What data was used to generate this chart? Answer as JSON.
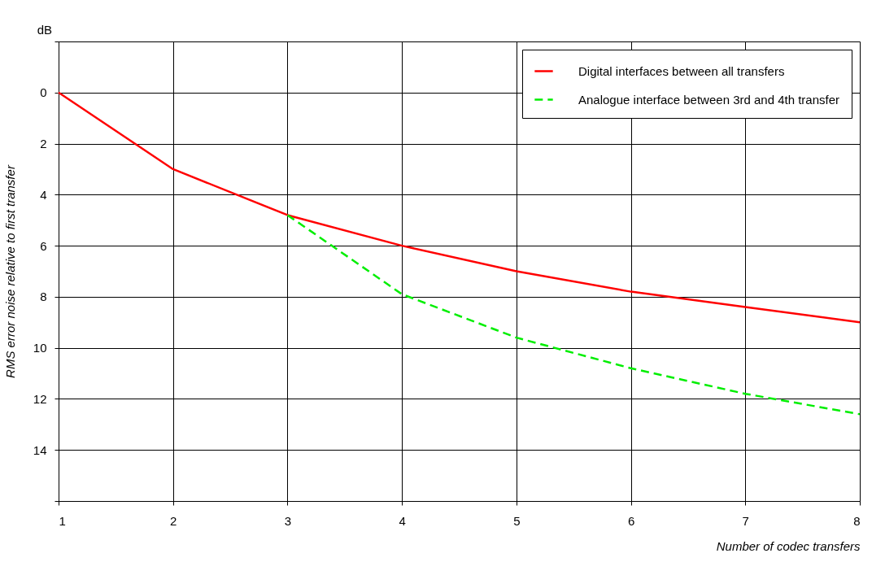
{
  "chart_data": {
    "type": "line",
    "series": [
      {
        "name": "Digital interfaces between all transfers",
        "color": "#ff0000",
        "line_style": "solid",
        "x": [
          1,
          2,
          3,
          4,
          5,
          6,
          7,
          8
        ],
        "values": [
          0,
          3.0,
          4.8,
          6.0,
          7.0,
          7.8,
          8.4,
          9.0
        ]
      },
      {
        "name": "Analogue interface between 3rd and 4th transfer",
        "color": "#00ee00",
        "line_style": "dashed",
        "x": [
          3,
          4,
          5,
          6,
          7,
          8
        ],
        "values": [
          4.8,
          7.9,
          9.6,
          10.8,
          11.8,
          12.6
        ]
      }
    ],
    "xlabel": "Number of codec transfers",
    "ylabel": "RMS error noise relative to first transfer",
    "annotations": [
      "dB"
    ],
    "xlim": [
      1,
      8
    ],
    "xticks": [
      1,
      2,
      3,
      4,
      5,
      6,
      7,
      8
    ],
    "ylim": [
      16,
      -2
    ],
    "yticks": [
      {
        "value": -2,
        "label": null
      },
      0,
      2,
      4,
      6,
      8,
      10,
      12,
      14,
      {
        "value": 16,
        "label": null
      }
    ],
    "grid": true,
    "legend": "top right",
    "marker": "none"
  }
}
